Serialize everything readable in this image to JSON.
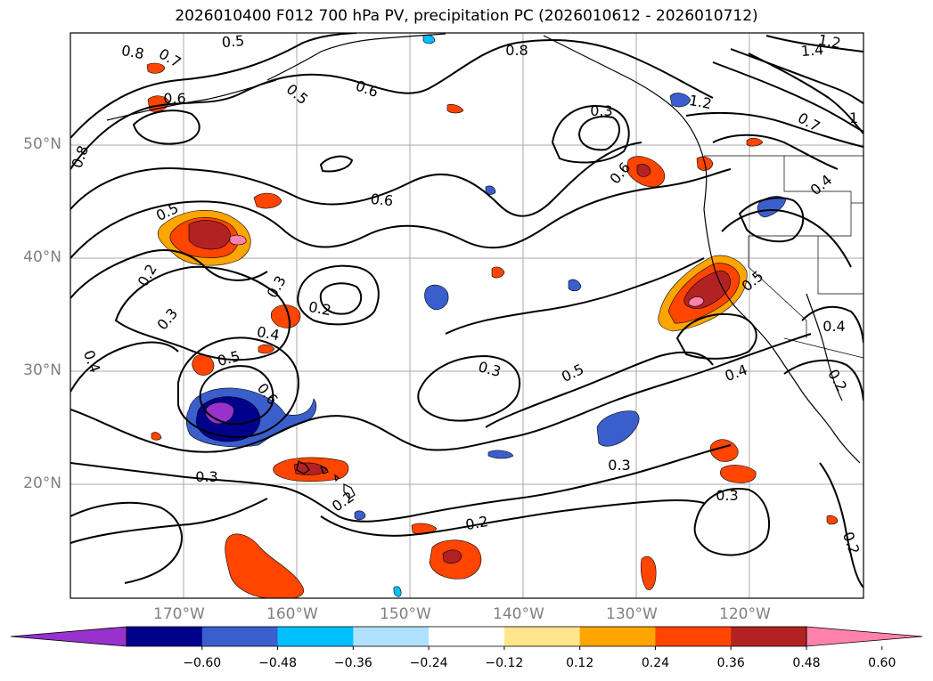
{
  "title": "2026010400 F012 700 hPa PV, precipitation PC (2026010612 - 2026010712)",
  "colors": {
    "frame": "#000000",
    "grid": "#aaaaaa",
    "contour": "#000000",
    "coast": "#000000",
    "axis_label": "#808080"
  },
  "map": {
    "lat_labels": [
      "50°N",
      "40°N",
      "30°N",
      "20°N"
    ],
    "lon_labels": [
      "170°W",
      "160°W",
      "150°W",
      "140°W",
      "130°W",
      "120°W"
    ]
  },
  "contour_labels": [
    "0.5",
    "0.8",
    "0.7",
    "0.5",
    "0.6",
    "0.8",
    "1.2",
    "1.4",
    "0.6",
    "0.6",
    "0.8",
    "0.5",
    "0.6",
    "0.2",
    "0.3",
    "0.3",
    "0.2",
    "0.4",
    "0.5",
    "0.6",
    "0.4",
    "0.3",
    "0.5",
    "0.3",
    "0.4",
    "0.3",
    "0.2",
    "0.2",
    "0.3",
    "0.2",
    "1.2",
    "0.7",
    "0.4",
    "0.4",
    "0.2",
    "1",
    "0.3",
    "0.5"
  ],
  "colorbar": {
    "ticks": [
      "−0.60",
      "−0.48",
      "−0.36",
      "−0.24",
      "−0.12",
      "0.12",
      "0.24",
      "0.36",
      "0.48",
      "0.60"
    ],
    "colors": [
      "#9932cc",
      "#00008b",
      "#3a5fcd",
      "#00bfff",
      "#b0e2ff",
      "#ffffff",
      "#ffe68a",
      "#ffa500",
      "#ff4500",
      "#b22222",
      "#ff82ab"
    ]
  }
}
